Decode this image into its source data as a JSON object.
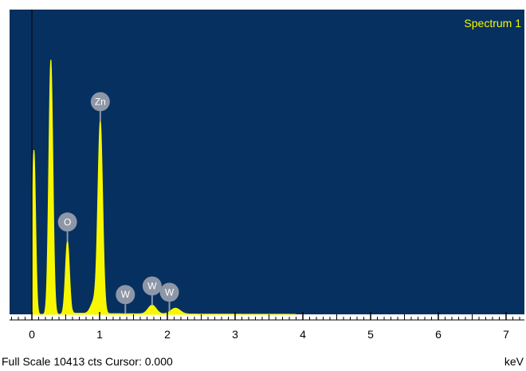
{
  "colors": {
    "plot_background": "#06305f",
    "spectrum_fill": "#f7f700",
    "series_name": "#f7f700",
    "marker": "#8e97a7"
  },
  "status_bar": {
    "full_scale": "Full Scale 10413 cts Cursor: 0.000",
    "unit": "keV"
  },
  "chart_data": {
    "type": "area",
    "title": "",
    "xlabel": "keV",
    "ylabel": "",
    "series_name": "Spectrum 1",
    "xlim": [
      -0.3,
      7.2
    ],
    "ylim": [
      0,
      10413
    ],
    "x_ticks": [
      "0",
      "1",
      "2",
      "3",
      "4",
      "5",
      "6",
      "7"
    ],
    "grid": false,
    "peaks": [
      {
        "x": 0.03,
        "y": 5620,
        "width": 0.025
      },
      {
        "x": 0.28,
        "y": 8700,
        "width": 0.03
      },
      {
        "x": 0.525,
        "y": 2500,
        "width": 0.03
      },
      {
        "x": 0.92,
        "y": 420,
        "width": 0.05
      },
      {
        "x": 1.01,
        "y": 6500,
        "width": 0.035
      },
      {
        "x": 1.775,
        "y": 300,
        "width": 0.06
      },
      {
        "x": 2.12,
        "y": 200,
        "width": 0.07
      }
    ],
    "markers": [
      {
        "label": "Zn",
        "x": 1.01
      },
      {
        "label": "O",
        "x": 0.525
      },
      {
        "label": "W",
        "x": 1.38
      },
      {
        "label": "W",
        "x": 1.775
      },
      {
        "label": "W",
        "x": 2.03
      }
    ]
  }
}
